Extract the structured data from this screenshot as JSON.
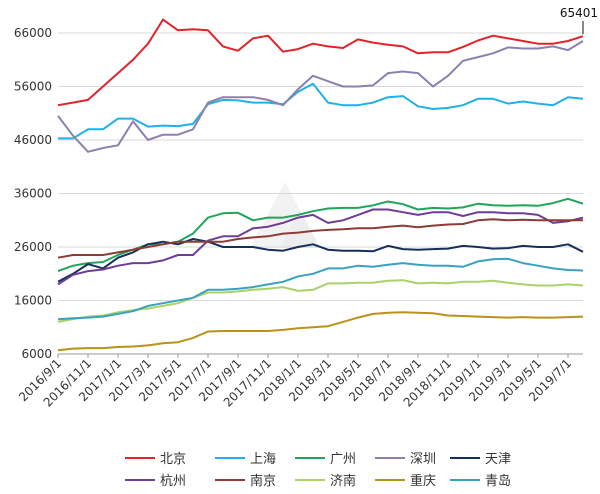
{
  "chart_data": {
    "type": "line",
    "title": "",
    "xlabel": "",
    "ylabel": "",
    "ylim": [
      6000,
      66000
    ],
    "yticks": [
      6000,
      16000,
      26000,
      36000,
      46000,
      56000,
      66000
    ],
    "ytick_labels": [
      "6000",
      "16000",
      "26000",
      "36000",
      "46000",
      "56000",
      "66000"
    ],
    "xtick_labels": [
      "2016/9/1",
      "2016/11/1",
      "2017/1/1",
      "2017/3/1",
      "2017/5/1",
      "2017/7/1",
      "2017/9/1",
      "2017/11/1",
      "2018/1/1",
      "2018/3/1",
      "2018/5/1",
      "2018/7/1",
      "2018/9/1",
      "2018/11/1",
      "2019/1/1",
      "2019/3/1",
      "2019/5/1",
      "2019/7/1"
    ],
    "x": [
      "2016/9",
      "2016/10",
      "2016/11",
      "2016/12",
      "2017/1",
      "2017/2",
      "2017/3",
      "2017/4",
      "2017/5",
      "2017/6",
      "2017/7",
      "2017/8",
      "2017/9",
      "2017/10",
      "2017/11",
      "2017/12",
      "2018/1",
      "2018/2",
      "2018/3",
      "2018/4",
      "2018/5",
      "2018/6",
      "2018/7",
      "2018/8",
      "2018/9",
      "2018/10",
      "2018/11",
      "2018/12",
      "2019/1",
      "2019/2",
      "2019/3",
      "2019/4",
      "2019/5",
      "2019/6",
      "2019/7",
      "2019/8"
    ],
    "grid": {
      "horizontal": true,
      "vertical": false
    },
    "legend_position": "bottom",
    "annotation": {
      "text": "65401",
      "series": "北京",
      "x": "2019/8"
    },
    "series": [
      {
        "name": "北京",
        "color": "#e0242b",
        "values": [
          52500,
          53000,
          53500,
          56000,
          58500,
          61000,
          64000,
          68500,
          66500,
          66700,
          66500,
          63500,
          62700,
          65000,
          65500,
          62500,
          63000,
          64000,
          63500,
          63200,
          64800,
          64200,
          63800,
          63500,
          62200,
          62400,
          62400,
          63400,
          64600,
          65500,
          65000,
          64500,
          64000,
          64000,
          64500,
          65401
        ]
      },
      {
        "name": "上海",
        "color": "#1fb1e8",
        "values": [
          46300,
          46300,
          48000,
          48000,
          50000,
          50000,
          48500,
          48700,
          48600,
          49000,
          52700,
          53500,
          53400,
          53000,
          53000,
          52700,
          55000,
          56500,
          53000,
          52500,
          52500,
          53000,
          54000,
          54200,
          52300,
          51800,
          52000,
          52500,
          53700,
          53700,
          52800,
          53200,
          52800,
          52500,
          54000,
          53700
        ]
      },
      {
        "name": "广州",
        "color": "#21a55a",
        "values": [
          21500,
          22500,
          23000,
          23200,
          24500,
          25500,
          26500,
          26500,
          27000,
          28500,
          31500,
          32300,
          32400,
          31000,
          31500,
          31500,
          32000,
          32700,
          33200,
          33300,
          33300,
          33800,
          34500,
          34000,
          33000,
          33300,
          33200,
          33400,
          34100,
          33800,
          33700,
          33800,
          33700,
          34200,
          35000,
          34100
        ]
      },
      {
        "name": "深圳",
        "color": "#8d80ad",
        "values": [
          50500,
          46800,
          43800,
          44500,
          45000,
          49500,
          46000,
          47000,
          47000,
          48000,
          53000,
          54000,
          54000,
          54000,
          53500,
          52500,
          55500,
          58000,
          57000,
          56000,
          56000,
          56200,
          58500,
          58800,
          58500,
          56000,
          58000,
          60800,
          61500,
          62200,
          63300,
          63100,
          63100,
          63500,
          62800,
          64500
        ]
      },
      {
        "name": "天津",
        "color": "#15305a",
        "values": [
          19500,
          21000,
          22800,
          22000,
          24000,
          25000,
          26500,
          27000,
          26500,
          27500,
          27000,
          26000,
          26000,
          26000,
          25500,
          25300,
          26000,
          26500,
          25500,
          25300,
          25300,
          25200,
          26200,
          25600,
          25500,
          25600,
          25700,
          26200,
          26000,
          25700,
          25800,
          26200,
          26000,
          26000,
          26500,
          25100
        ]
      },
      {
        "name": "杭州",
        "color": "#6f3d96",
        "values": [
          19000,
          20800,
          21500,
          21800,
          22500,
          23000,
          23000,
          23500,
          24500,
          24500,
          27200,
          28000,
          28000,
          29500,
          29800,
          30500,
          31500,
          32000,
          30500,
          31000,
          32000,
          33000,
          33000,
          32500,
          32000,
          32500,
          32500,
          31800,
          32500,
          32500,
          32300,
          32300,
          32000,
          30500,
          30800,
          31500
        ]
      },
      {
        "name": "南京",
        "color": "#8e3a36",
        "values": [
          24000,
          24500,
          24500,
          24500,
          25000,
          25500,
          26000,
          26500,
          27000,
          27000,
          27000,
          27000,
          27500,
          27800,
          28000,
          28500,
          28700,
          29000,
          29200,
          29300,
          29500,
          29500,
          29800,
          30000,
          29700,
          30000,
          30200,
          30300,
          31000,
          31200,
          31000,
          31100,
          31000,
          31000,
          31000,
          31000
        ]
      },
      {
        "name": "济南",
        "color": "#a9d26b",
        "values": [
          12000,
          12500,
          13000,
          13200,
          13800,
          14200,
          14500,
          15000,
          15500,
          16500,
          17500,
          17500,
          17700,
          18000,
          18200,
          18500,
          17800,
          18000,
          19200,
          19200,
          19300,
          19300,
          19700,
          19800,
          19200,
          19300,
          19200,
          19500,
          19500,
          19700,
          19300,
          19000,
          18800,
          18800,
          19000,
          18800
        ]
      },
      {
        "name": "重庆",
        "color": "#b8921a",
        "values": [
          6700,
          7000,
          7100,
          7100,
          7300,
          7400,
          7600,
          8000,
          8200,
          9000,
          10200,
          10300,
          10300,
          10300,
          10300,
          10500,
          10800,
          11000,
          11200,
          12000,
          12800,
          13500,
          13700,
          13800,
          13700,
          13600,
          13200,
          13100,
          13000,
          12900,
          12800,
          12900,
          12800,
          12800,
          12900,
          13000
        ]
      },
      {
        "name": "青岛",
        "color": "#3aa2c0",
        "values": [
          12500,
          12700,
          12800,
          13000,
          13500,
          14000,
          15000,
          15500,
          16000,
          16500,
          18000,
          18000,
          18200,
          18500,
          19000,
          19500,
          20500,
          21000,
          22000,
          22000,
          22500,
          22300,
          22700,
          23000,
          22700,
          22500,
          22500,
          22300,
          23300,
          23700,
          23800,
          23000,
          22500,
          22000,
          21700,
          21600
        ]
      }
    ]
  }
}
